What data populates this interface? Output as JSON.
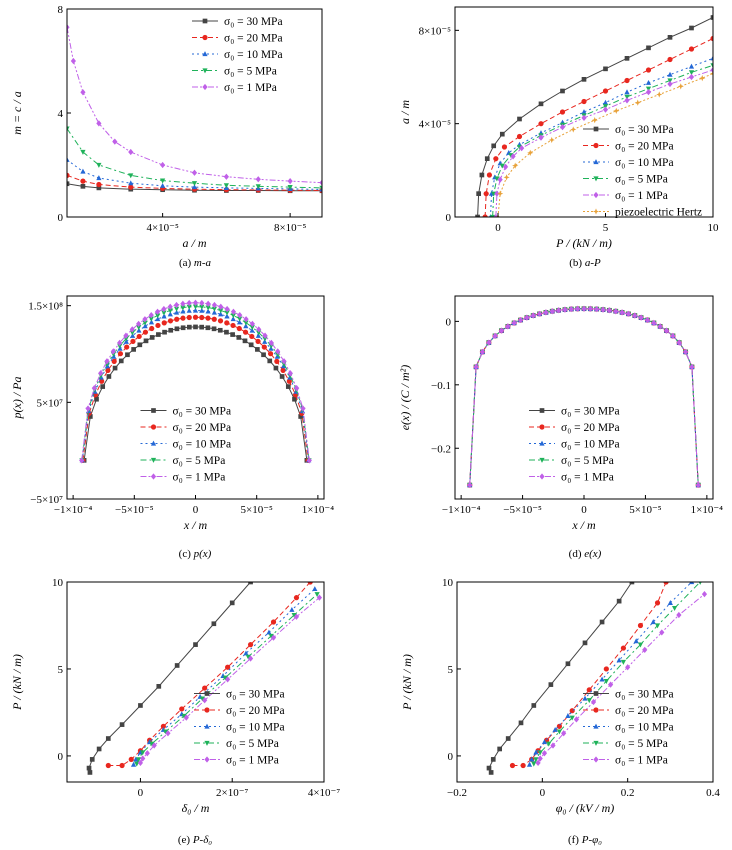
{
  "figure": {
    "legend_labels": [
      "σ₀ = 30 MPa",
      "σ₀ = 20 MPa",
      "σ₀ = 10 MPa",
      "σ₀ = 5 MPa",
      "σ₀ = 1 MPa"
    ],
    "series_colors": [
      "#444444",
      "#e8271f",
      "#2468d6",
      "#1fb25a",
      "#c060e8"
    ],
    "hertz_color": "#e8a23a"
  },
  "chart_data": [
    {
      "id": "a",
      "type": "line",
      "caption_prefix": "(a) ",
      "caption_italic": "m-a",
      "xlabel": "a / m",
      "ylabel": "m = c / a",
      "xlim": [
        1e-05,
        9e-05
      ],
      "ylim": [
        0,
        8
      ],
      "xticks": [
        {
          "v": 4e-05,
          "label": "4×10⁻⁵"
        },
        {
          "v": 8e-05,
          "label": "8×10⁻⁵"
        }
      ],
      "yticks": [
        {
          "v": 0,
          "label": "0"
        },
        {
          "v": 4,
          "label": "4"
        },
        {
          "v": 8,
          "label": "8"
        }
      ],
      "legend": "top-right",
      "series": [
        {
          "name": "σ₀ = 30 MPa",
          "x": [
            1e-05,
            1.5e-05,
            2e-05,
            3e-05,
            4e-05,
            5e-05,
            6e-05,
            7e-05,
            8e-05,
            9e-05
          ],
          "y": [
            1.28,
            1.18,
            1.12,
            1.07,
            1.05,
            1.03,
            1.02,
            1.02,
            1.01,
            1.01
          ]
        },
        {
          "name": "σ₀ = 20 MPa",
          "x": [
            1e-05,
            1.5e-05,
            2e-05,
            3e-05,
            4e-05,
            5e-05,
            6e-05,
            7e-05,
            8e-05,
            9e-05
          ],
          "y": [
            1.6,
            1.38,
            1.25,
            1.15,
            1.1,
            1.07,
            1.05,
            1.04,
            1.03,
            1.02
          ]
        },
        {
          "name": "σ₀ = 10 MPa",
          "x": [
            1e-05,
            1.5e-05,
            2e-05,
            3e-05,
            4e-05,
            5e-05,
            6e-05,
            7e-05,
            8e-05,
            9e-05
          ],
          "y": [
            2.2,
            1.75,
            1.5,
            1.3,
            1.2,
            1.15,
            1.12,
            1.1,
            1.08,
            1.06
          ]
        },
        {
          "name": "σ₀ = 5 MPa",
          "x": [
            1e-05,
            1.5e-05,
            2e-05,
            3e-05,
            4e-05,
            5e-05,
            6e-05,
            7e-05,
            8e-05,
            9e-05
          ],
          "y": [
            3.4,
            2.5,
            2.0,
            1.6,
            1.4,
            1.3,
            1.22,
            1.18,
            1.15,
            1.12
          ]
        },
        {
          "name": "σ₀ = 1 MPa",
          "x": [
            1e-05,
            1.2e-05,
            1.5e-05,
            2e-05,
            2.5e-05,
            3e-05,
            4e-05,
            5e-05,
            6e-05,
            7e-05,
            8e-05,
            9e-05
          ],
          "y": [
            7.3,
            6.0,
            4.8,
            3.6,
            2.9,
            2.5,
            2.0,
            1.7,
            1.55,
            1.45,
            1.38,
            1.32
          ]
        }
      ]
    },
    {
      "id": "b",
      "type": "line",
      "caption_prefix": "(b) ",
      "caption_italic": "a-P",
      "xlabel": "P / (kN / m)",
      "ylabel": "a / m",
      "xlim": [
        -2,
        10
      ],
      "ylim": [
        0,
        9e-05
      ],
      "xticks": [
        {
          "v": 0,
          "label": "0"
        },
        {
          "v": 5,
          "label": "5"
        },
        {
          "v": 10,
          "label": "10"
        }
      ],
      "yticks": [
        {
          "v": 0,
          "label": "0"
        },
        {
          "v": 4e-05,
          "label": "4×10⁻⁵"
        },
        {
          "v": 8e-05,
          "label": "8×10⁻⁵"
        }
      ],
      "legend": "bottom-right",
      "series": [
        {
          "name": "σ₀ = 30 MPa",
          "x": [
            -0.95,
            -0.9,
            -0.75,
            -0.5,
            -0.2,
            0.2,
            1,
            2,
            3,
            4,
            5,
            6,
            7,
            8,
            9,
            10
          ],
          "y": [
            0,
            1e-05,
            1.8e-05,
            2.5e-05,
            3.05e-05,
            3.55e-05,
            4.2e-05,
            4.85e-05,
            5.4e-05,
            5.9e-05,
            6.35e-05,
            6.8e-05,
            7.25e-05,
            7.7e-05,
            8.1e-05,
            8.55e-05
          ]
        },
        {
          "name": "σ₀ = 20 MPa",
          "x": [
            -0.6,
            -0.55,
            -0.4,
            -0.1,
            0.3,
            1,
            2,
            3,
            4,
            5,
            6,
            7,
            8,
            9,
            10
          ],
          "y": [
            0,
            1e-05,
            1.8e-05,
            2.5e-05,
            3e-05,
            3.45e-05,
            4e-05,
            4.5e-05,
            4.95e-05,
            5.4e-05,
            5.85e-05,
            6.3e-05,
            6.75e-05,
            7.2e-05,
            7.65e-05
          ]
        },
        {
          "name": "σ₀ = 10 MPa",
          "x": [
            -0.35,
            -0.3,
            -0.15,
            0.1,
            0.5,
            1,
            2,
            3,
            4,
            5,
            6,
            7,
            8,
            9,
            10
          ],
          "y": [
            0,
            1e-05,
            1.7e-05,
            2.3e-05,
            2.75e-05,
            3.1e-05,
            3.6e-05,
            4.05e-05,
            4.5e-05,
            4.9e-05,
            5.35e-05,
            5.75e-05,
            6.1e-05,
            6.45e-05,
            6.8e-05
          ]
        },
        {
          "name": "σ₀ = 5 MPa",
          "x": [
            -0.25,
            -0.2,
            -0.05,
            0.2,
            0.6,
            1,
            2,
            3,
            4,
            5,
            6,
            7,
            8,
            9,
            10
          ],
          "y": [
            0,
            1e-05,
            1.65e-05,
            2.2e-05,
            2.65e-05,
            3e-05,
            3.5e-05,
            3.95e-05,
            4.35e-05,
            4.75e-05,
            5.15e-05,
            5.5e-05,
            5.85e-05,
            6.2e-05,
            6.5e-05
          ]
        },
        {
          "name": "σ₀ = 1 MPa",
          "x": [
            -0.1,
            -0.05,
            0.1,
            0.35,
            0.7,
            1.1,
            2,
            3,
            4,
            5,
            6,
            7,
            8,
            9,
            10
          ],
          "y": [
            0,
            1e-05,
            1.6e-05,
            2.15e-05,
            2.6e-05,
            2.95e-05,
            3.4e-05,
            3.85e-05,
            4.25e-05,
            4.6e-05,
            5e-05,
            5.35e-05,
            5.7e-05,
            6e-05,
            6.3e-05
          ]
        },
        {
          "name": "piezoelectric Hertz",
          "x": [
            0,
            0.1,
            0.4,
            0.8,
            1.5,
            2.5,
            3.5,
            4.5,
            5.5,
            6.5,
            7.5,
            8.5,
            9.5,
            10
          ],
          "y": [
            0,
            1e-05,
            1.7e-05,
            2.2e-05,
            2.75e-05,
            3.3e-05,
            3.75e-05,
            4.15e-05,
            4.55e-05,
            4.9e-05,
            5.25e-05,
            5.6e-05,
            5.95e-05,
            6.15e-05
          ]
        }
      ]
    },
    {
      "id": "c",
      "type": "line",
      "caption_prefix": "(c) ",
      "caption_italic": "p(x)",
      "xlabel": "x / m",
      "ylabel": "p(x) / Pa",
      "xlim": [
        -0.000105,
        0.000105
      ],
      "ylim": [
        -50000000.0,
        160000000.0
      ],
      "xticks": [
        {
          "v": -0.0001,
          "label": "−1×10⁻⁴"
        },
        {
          "v": -5e-05,
          "label": "−5×10⁻⁵"
        },
        {
          "v": 0,
          "label": "0"
        },
        {
          "v": 5e-05,
          "label": "5×10⁻⁵"
        },
        {
          "v": 0.0001,
          "label": "1×10⁻⁴"
        }
      ],
      "yticks": [
        {
          "v": -50000000.0,
          "label": "−5×10⁷"
        },
        {
          "v": 50000000.0,
          "label": "5×10⁷"
        },
        {
          "v": 150000000.0,
          "label": "1.5×10⁸"
        }
      ],
      "legend": "bottom-center",
      "series": [
        {
          "name": "σ₀ = 30 MPa",
          "a": 9.1e-05,
          "peak": 128000000.0,
          "base": -10000000.0
        },
        {
          "name": "σ₀ = 20 MPa",
          "a": 9.2e-05,
          "peak": 138000000.0,
          "base": -10000000.0
        },
        {
          "name": "σ₀ = 10 MPa",
          "a": 9.25e-05,
          "peak": 145000000.0,
          "base": -10000000.0
        },
        {
          "name": "σ₀ = 5 MPa",
          "a": 9.28e-05,
          "peak": 149000000.0,
          "base": -10000000.0
        },
        {
          "name": "σ₀ = 1 MPa",
          "a": 9.3e-05,
          "peak": 153000000.0,
          "base": -10000000.0
        }
      ]
    },
    {
      "id": "d",
      "type": "line",
      "caption_prefix": "(d) ",
      "caption_italic": "e(x)",
      "xlabel": "x / m",
      "ylabel": "e(x) / (C / m²)",
      "xlim": [
        -0.000105,
        0.000105
      ],
      "ylim": [
        -0.28,
        0.04
      ],
      "xticks": [
        {
          "v": -0.0001,
          "label": "−1×10⁻⁴"
        },
        {
          "v": -5e-05,
          "label": "−5×10⁻⁵"
        },
        {
          "v": 0,
          "label": "0"
        },
        {
          "v": 5e-05,
          "label": "5×10⁻⁵"
        },
        {
          "v": 0.0001,
          "label": "1×10⁻⁴"
        }
      ],
      "yticks": [
        {
          "v": 0,
          "label": "0"
        },
        {
          "v": -0.1,
          "label": "−0.1"
        },
        {
          "v": -0.2,
          "label": "−0.2"
        }
      ],
      "legend": "bottom-center",
      "series": [
        {
          "name": "σ₀ = 30 MPa",
          "a": 9.3e-05
        },
        {
          "name": "σ₀ = 20 MPa",
          "a": 9.3e-05
        },
        {
          "name": "σ₀ = 10 MPa",
          "a": 9.3e-05
        },
        {
          "name": "σ₀ = 5 MPa",
          "a": 9.3e-05
        },
        {
          "name": "σ₀ = 1 MPa",
          "a": 9.3e-05
        }
      ]
    },
    {
      "id": "e",
      "type": "line",
      "caption_prefix": "(e) ",
      "caption_italic": "P-δ₀",
      "xlabel": "δ₀ / m",
      "ylabel": "P / (kN / m)",
      "xlim": [
        -1.6e-07,
        4e-07
      ],
      "ylim": [
        -1.5,
        10
      ],
      "xticks": [
        {
          "v": 0,
          "label": "0"
        },
        {
          "v": 2e-07,
          "label": "2×10⁻⁷"
        },
        {
          "v": 4e-07,
          "label": "4×10⁻⁷"
        }
      ],
      "yticks": [
        {
          "v": 0,
          "label": "0"
        },
        {
          "v": 5,
          "label": "5"
        },
        {
          "v": 10,
          "label": "10"
        }
      ],
      "legend": "bottom-right",
      "series": [
        {
          "name": "σ₀ = 30 MPa",
          "x": [
            -1.1e-07,
            -1.12e-07,
            -1.05e-07,
            -9e-08,
            -7e-08,
            -4e-08,
            0,
            4e-08,
            8e-08,
            1.2e-07,
            1.6e-07,
            2e-07,
            2.4e-07
          ],
          "y": [
            -0.95,
            -0.7,
            -0.2,
            0.4,
            1.0,
            1.8,
            2.9,
            4.0,
            5.2,
            6.4,
            7.6,
            8.8,
            10
          ]
        },
        {
          "name": "σ₀ = 20 MPa",
          "x": [
            -7e-08,
            -4e-08,
            -2e-08,
            0,
            2e-08,
            5e-08,
            9e-08,
            1.4e-07,
            1.9e-07,
            2.4e-07,
            2.9e-07,
            3.4e-07,
            3.7e-07
          ],
          "y": [
            -0.55,
            -0.55,
            -0.2,
            0.3,
            0.9,
            1.7,
            2.7,
            3.9,
            5.1,
            6.4,
            7.7,
            9.1,
            10
          ]
        },
        {
          "name": "σ₀ = 10 MPa",
          "x": [
            -1.5e-08,
            -1e-08,
            0,
            2e-08,
            5e-08,
            9e-08,
            1.3e-07,
            1.8e-07,
            2.3e-07,
            2.8e-07,
            3.3e-07,
            3.8e-07
          ],
          "y": [
            -0.5,
            -0.2,
            0.2,
            0.8,
            1.5,
            2.4,
            3.4,
            4.6,
            5.9,
            7.1,
            8.4,
            9.6
          ]
        },
        {
          "name": "σ₀ = 5 MPa",
          "x": [
            -8e-09,
            -4e-09,
            5e-09,
            2.5e-08,
            5.5e-08,
            9.5e-08,
            1.35e-07,
            1.85e-07,
            2.35e-07,
            2.85e-07,
            3.35e-07,
            3.85e-07
          ],
          "y": [
            -0.45,
            -0.2,
            0.2,
            0.7,
            1.4,
            2.3,
            3.3,
            4.5,
            5.7,
            6.9,
            8.1,
            9.3
          ]
        },
        {
          "name": "σ₀ = 1 MPa",
          "x": [
            0,
            5e-09,
            1.5e-08,
            3e-08,
            6e-08,
            1e-07,
            1.4e-07,
            1.9e-07,
            2.4e-07,
            2.9e-07,
            3.4e-07,
            3.9e-07
          ],
          "y": [
            -0.4,
            -0.15,
            0.15,
            0.6,
            1.3,
            2.2,
            3.2,
            4.4,
            5.6,
            6.8,
            8.0,
            9.1
          ]
        }
      ]
    },
    {
      "id": "f",
      "type": "line",
      "caption_prefix": "(f) ",
      "caption_italic": "P-φ₀",
      "xlabel": "φ₀ / (kV / m)",
      "ylabel": "P / (kN / m)",
      "xlim": [
        -0.2,
        0.4
      ],
      "ylim": [
        -1.5,
        10
      ],
      "xticks": [
        {
          "v": -0.2,
          "label": "−0.2"
        },
        {
          "v": 0,
          "label": "0"
        },
        {
          "v": 0.2,
          "label": "0.2"
        },
        {
          "v": 0.4,
          "label": "0.4"
        }
      ],
      "yticks": [
        {
          "v": 0,
          "label": "0"
        },
        {
          "v": 5,
          "label": "5"
        },
        {
          "v": 10,
          "label": "10"
        }
      ],
      "legend": "bottom-right",
      "series": [
        {
          "name": "σ₀ = 30 MPa",
          "x": [
            -0.12,
            -0.125,
            -0.115,
            -0.1,
            -0.08,
            -0.05,
            -0.02,
            0.02,
            0.06,
            0.1,
            0.14,
            0.18,
            0.21
          ],
          "y": [
            -0.95,
            -0.7,
            -0.2,
            0.4,
            1.0,
            1.9,
            2.9,
            4.1,
            5.3,
            6.5,
            7.7,
            8.9,
            10
          ]
        },
        {
          "name": "σ₀ = 20 MPa",
          "x": [
            -0.07,
            -0.045,
            -0.025,
            -0.01,
            0.01,
            0.04,
            0.07,
            0.11,
            0.15,
            0.19,
            0.23,
            0.27,
            0.29
          ],
          "y": [
            -0.55,
            -0.55,
            -0.2,
            0.3,
            0.9,
            1.7,
            2.6,
            3.8,
            5.0,
            6.2,
            7.5,
            8.8,
            10
          ]
        },
        {
          "name": "σ₀ = 10 MPa",
          "x": [
            -0.03,
            -0.025,
            -0.015,
            0.005,
            0.03,
            0.06,
            0.1,
            0.14,
            0.18,
            0.22,
            0.26,
            0.3,
            0.35
          ],
          "y": [
            -0.5,
            -0.2,
            0.2,
            0.8,
            1.5,
            2.3,
            3.3,
            4.4,
            5.5,
            6.6,
            7.7,
            8.8,
            10
          ]
        },
        {
          "name": "σ₀ = 5 MPa",
          "x": [
            -0.02,
            -0.015,
            -0.005,
            0.015,
            0.04,
            0.07,
            0.11,
            0.15,
            0.19,
            0.23,
            0.27,
            0.31,
            0.37
          ],
          "y": [
            -0.45,
            -0.2,
            0.2,
            0.7,
            1.4,
            2.2,
            3.2,
            4.3,
            5.4,
            6.4,
            7.5,
            8.5,
            10
          ]
        },
        {
          "name": "σ₀ = 1 MPa",
          "x": [
            -0.01,
            -0.005,
            0.005,
            0.025,
            0.05,
            0.08,
            0.12,
            0.16,
            0.2,
            0.24,
            0.28,
            0.32,
            0.38
          ],
          "y": [
            -0.4,
            -0.15,
            0.15,
            0.6,
            1.3,
            2.1,
            3.1,
            4.1,
            5.1,
            6.1,
            7.1,
            8.1,
            9.3
          ]
        }
      ]
    }
  ]
}
